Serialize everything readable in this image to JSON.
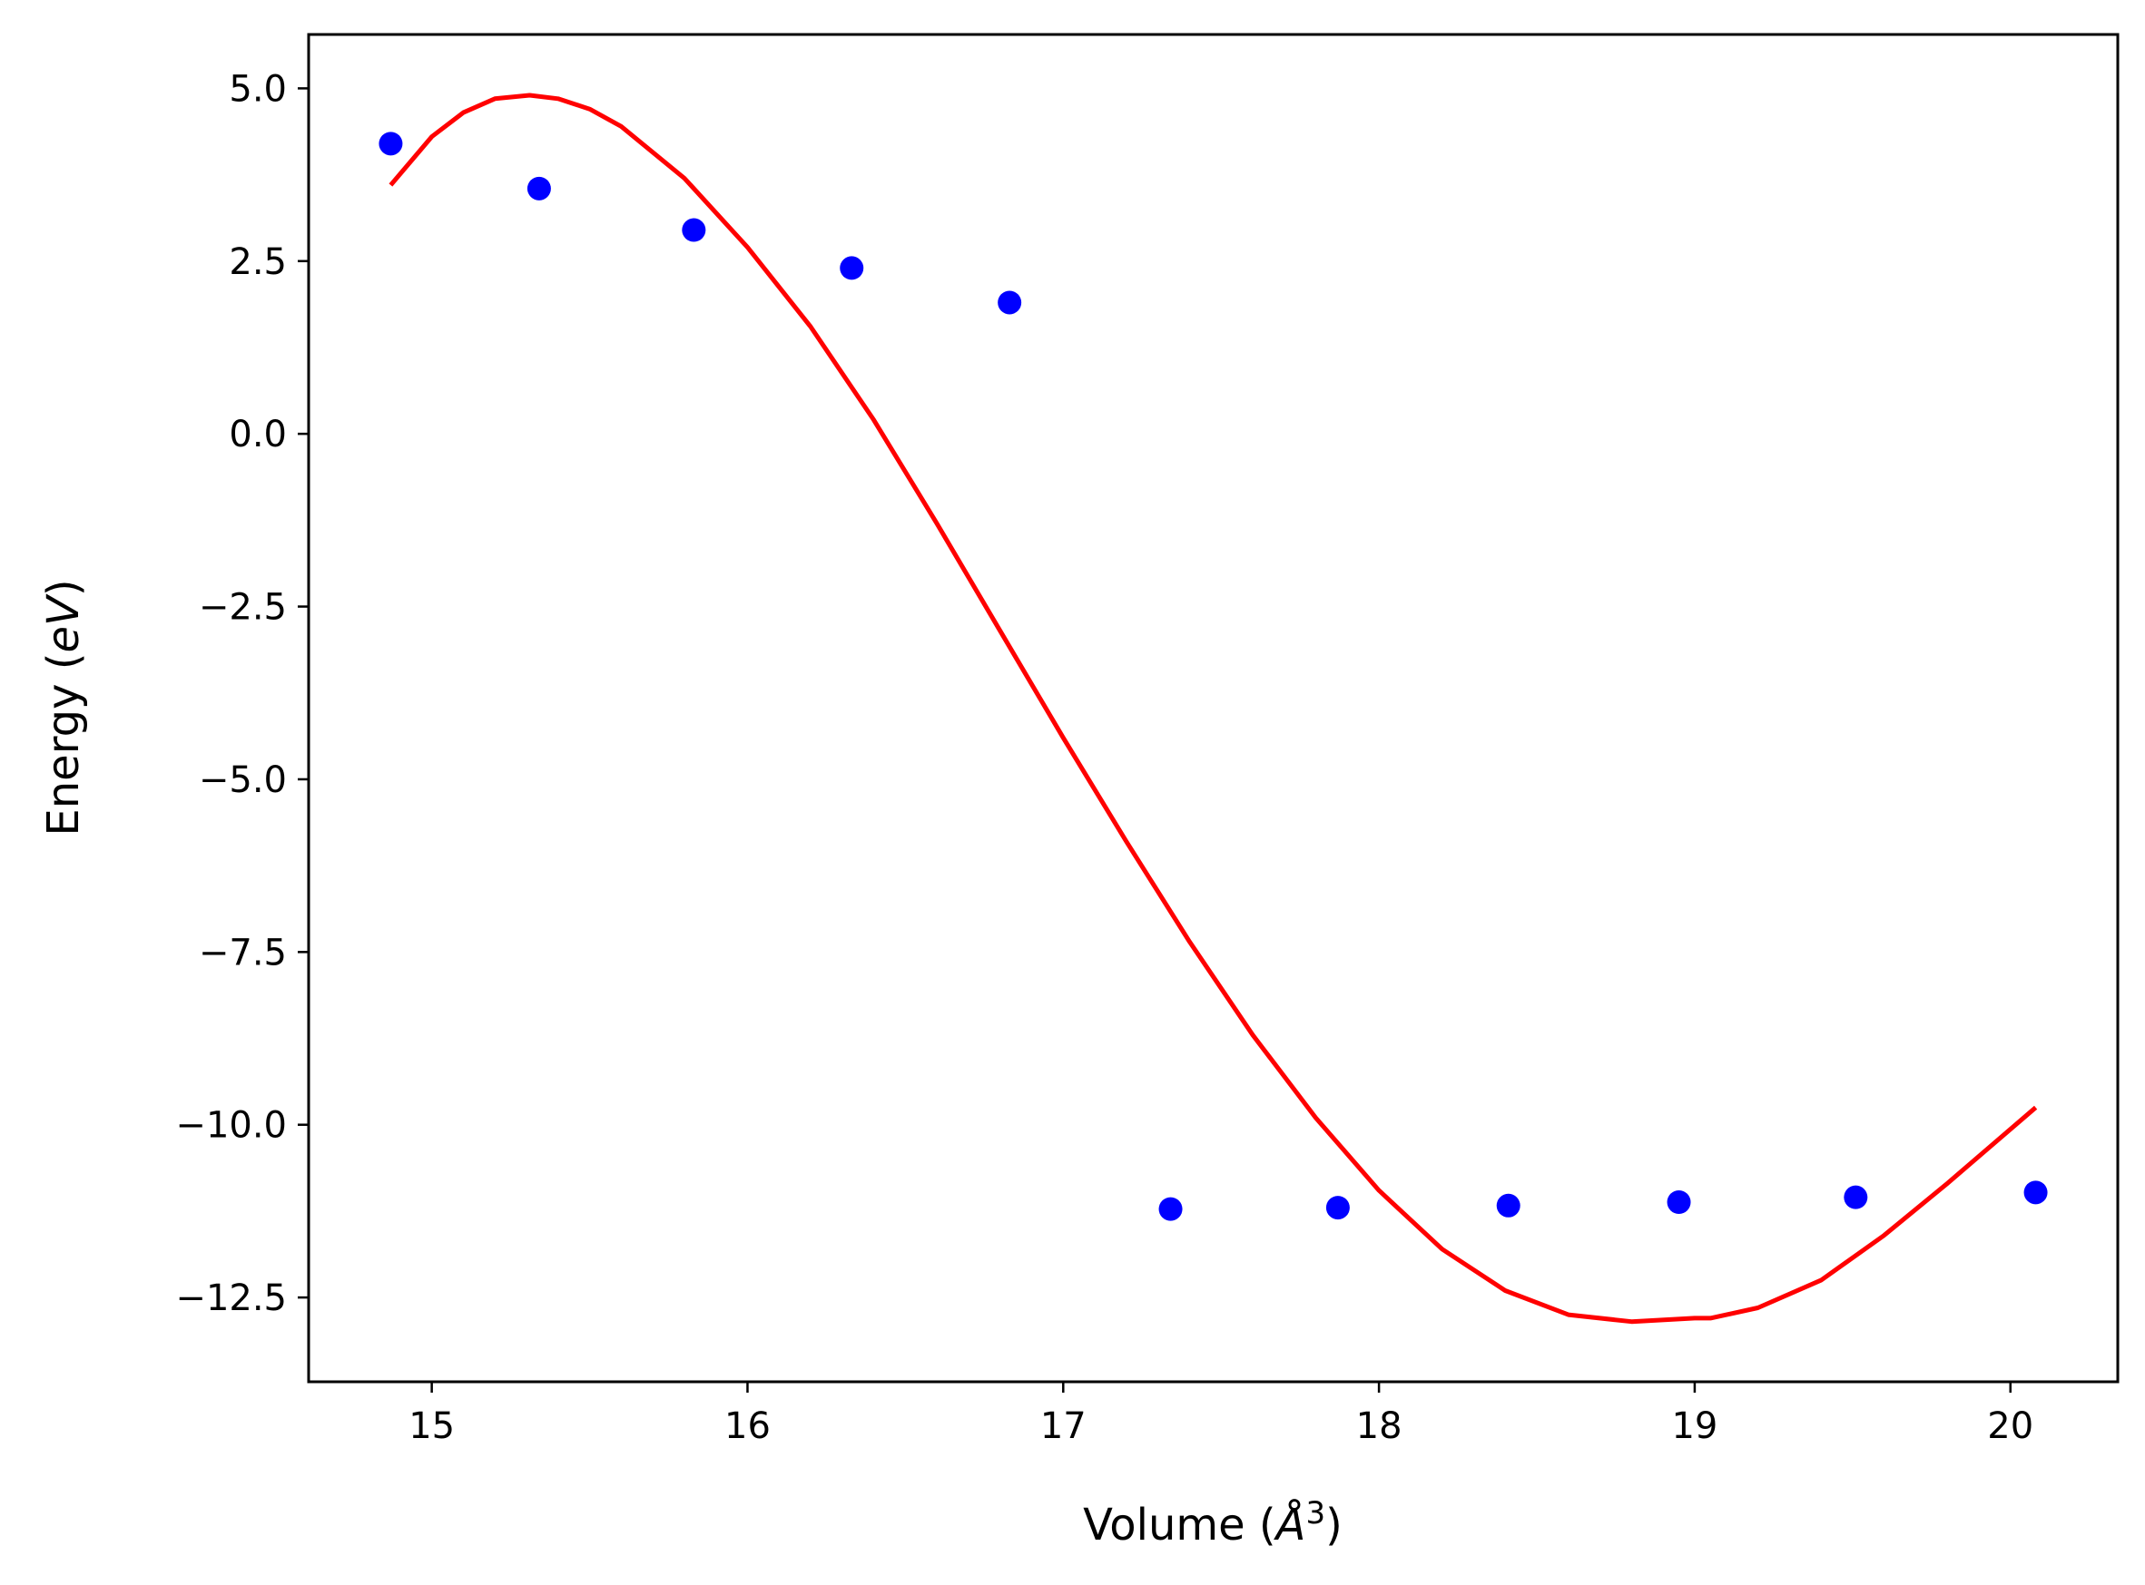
{
  "chart_data": {
    "type": "scatter",
    "title": "",
    "xlabel": "Volume (Å³)",
    "xlabel_parts": {
      "prefix": "Volume (",
      "symbol": "Å",
      "sup": "3",
      "suffix": ")"
    },
    "ylabel": "Energy (eV)",
    "ylabel_parts": {
      "prefix": "Energy (",
      "unit": "eV",
      "suffix": ")"
    },
    "xlim": [
      14.61,
      20.34
    ],
    "ylim": [
      -13.72,
      5.78
    ],
    "xticks": [
      15,
      16,
      17,
      18,
      19,
      20
    ],
    "xtick_labels": [
      "15",
      "16",
      "17",
      "18",
      "19",
      "20"
    ],
    "yticks": [
      5.0,
      2.5,
      0.0,
      -2.5,
      -5.0,
      -7.5,
      -10.0,
      -12.5
    ],
    "ytick_labels": [
      "5.0",
      "2.5",
      "0.0",
      "−2.5",
      "−5.0",
      "−7.5",
      "−10.0",
      "−12.5"
    ],
    "grid": false,
    "legend": "none",
    "series": [
      {
        "kind": "points",
        "color": "#0000ff",
        "x": [
          14.87,
          15.34,
          15.83,
          16.33,
          16.83,
          17.34,
          17.87,
          18.41,
          18.95,
          19.51,
          20.08
        ],
        "y": [
          4.2,
          3.55,
          2.95,
          2.4,
          1.9,
          -11.22,
          -11.2,
          -11.17,
          -11.12,
          -11.05,
          -10.98
        ]
      },
      {
        "kind": "fit-curve",
        "color": "#ff0000",
        "x": [
          14.87,
          15.0,
          15.1,
          15.2,
          15.31,
          15.4,
          15.5,
          15.6,
          15.8,
          16.0,
          16.2,
          16.4,
          16.6,
          16.8,
          17.0,
          17.2,
          17.4,
          17.6,
          17.8,
          18.0,
          18.2,
          18.4,
          18.6,
          18.8,
          19.0,
          19.05,
          19.2,
          19.4,
          19.6,
          19.8,
          20.08
        ],
        "y": [
          3.6,
          4.3,
          4.65,
          4.85,
          4.9,
          4.85,
          4.7,
          4.45,
          3.7,
          2.7,
          1.55,
          0.2,
          -1.3,
          -2.85,
          -4.4,
          -5.9,
          -7.35,
          -8.7,
          -9.9,
          -10.95,
          -11.8,
          -12.4,
          -12.75,
          -12.85,
          -12.8,
          -12.8,
          -12.65,
          -12.25,
          -11.6,
          -10.85,
          -9.75
        ]
      }
    ]
  }
}
